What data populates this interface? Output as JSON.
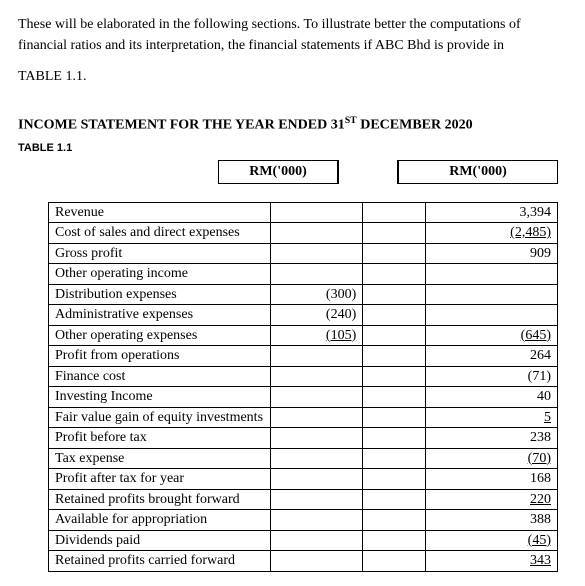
{
  "intro": {
    "para1": "These will be elaborated in the following sections. To illustrate better the computations of financial ratios and its interpretation, the financial statements if ABC Bhd is provide in",
    "table_ref": "TABLE 1.1."
  },
  "heading": {
    "prefix": "INCOME STATEMENT FOR THE YEAR ENDED 31",
    "sup": "ST",
    "suffix": " DECEMBER 2020"
  },
  "subhead": "TABLE 1.1",
  "col_headers": {
    "col1": "RM('000)",
    "col2": "RM('000)"
  },
  "rows": [
    {
      "label": "Revenue",
      "c1": "",
      "c2": "3,394",
      "u1": false,
      "u2": false
    },
    {
      "label": "Cost of sales and direct expenses",
      "c1": "",
      "c2": "(2,485)",
      "u1": false,
      "u2": true
    },
    {
      "label": "Gross profit",
      "c1": "",
      "c2": "909",
      "u1": false,
      "u2": false
    },
    {
      "label": "Other operating income",
      "c1": "",
      "c2": "",
      "u1": false,
      "u2": false
    },
    {
      "label": "Distribution expenses",
      "c1": "(300)",
      "c2": "",
      "u1": false,
      "u2": false
    },
    {
      "label": "Administrative expenses",
      "c1": "(240)",
      "c2": "",
      "u1": false,
      "u2": false
    },
    {
      "label": "Other operating expenses",
      "c1": "(105)",
      "c2": "(645)",
      "u1": true,
      "u2": true
    },
    {
      "label": "Profit from operations",
      "c1": "",
      "c2": "264",
      "u1": false,
      "u2": false
    },
    {
      "label": "Finance cost",
      "c1": "",
      "c2": "(71)",
      "u1": false,
      "u2": false
    },
    {
      "label": "Investing Income",
      "c1": "",
      "c2": "40",
      "u1": false,
      "u2": false
    },
    {
      "label": "Fair value gain of equity investments",
      "c1": "",
      "c2": "5",
      "u1": false,
      "u2": true
    },
    {
      "label": "Profit before tax",
      "c1": "",
      "c2": "238",
      "u1": false,
      "u2": false
    },
    {
      "label": "Tax expense",
      "c1": "",
      "c2": "(70)",
      "u1": false,
      "u2": true
    },
    {
      "label": "Profit after tax for year",
      "c1": "",
      "c2": "168",
      "u1": false,
      "u2": false
    },
    {
      "label": "Retained profits brought forward",
      "c1": "",
      "c2": "220",
      "u1": false,
      "u2": true
    },
    {
      "label": "Available for appropriation",
      "c1": "",
      "c2": "388",
      "u1": false,
      "u2": false
    },
    {
      "label": "Dividends paid",
      "c1": "",
      "c2": "(45)",
      "u1": false,
      "u2": true
    },
    {
      "label": "Retained profits carried forward",
      "c1": "",
      "c2": "343",
      "u1": false,
      "u2": true
    }
  ]
}
